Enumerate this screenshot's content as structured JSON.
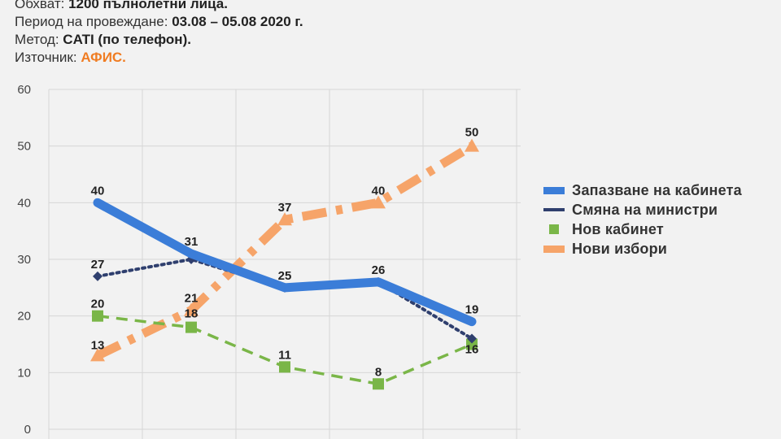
{
  "header": {
    "lines": [
      {
        "label": "Обхват:",
        "value": "1200 пълнолетни лица."
      },
      {
        "label": "Период на провеждане:",
        "value": "03.08 – 05.08 2020 г."
      },
      {
        "label": "Метод:",
        "value": "CATI (по телефон)."
      },
      {
        "label": "Източник:",
        "value": "АФИС."
      }
    ]
  },
  "chart_data": {
    "type": "line",
    "categories": [
      "",
      "",
      "",
      "",
      ""
    ],
    "ylim": [
      0,
      60
    ],
    "yticks": [
      0,
      10,
      20,
      30,
      40,
      50,
      60
    ],
    "grid": true,
    "legend_position": "right",
    "series": [
      {
        "name": "Запазване на кабинета",
        "values": [
          40,
          31,
          25,
          26,
          19
        ],
        "color": "#3b7dd8",
        "style": "solid",
        "marker": "none"
      },
      {
        "name": "Смяна на министри",
        "values": [
          27,
          30,
          25,
          26,
          16
        ],
        "labels": [
          "27",
          "",
          "",
          "",
          "16"
        ],
        "color": "#2f3f6e",
        "style": "dotted",
        "marker": "diamond"
      },
      {
        "name": "Нов кабинет",
        "values": [
          20,
          18,
          11,
          8,
          15
        ],
        "labels": [
          "20",
          "18",
          "11",
          "8",
          ""
        ],
        "color": "#7ab648",
        "style": "dashed",
        "marker": "square"
      },
      {
        "name": "Нови избори",
        "values": [
          13,
          21,
          37,
          40,
          50
        ],
        "color": "#f6a469",
        "style": "dashdot",
        "marker": "triangle"
      }
    ]
  },
  "colors": {
    "accent": "#f07c22"
  }
}
